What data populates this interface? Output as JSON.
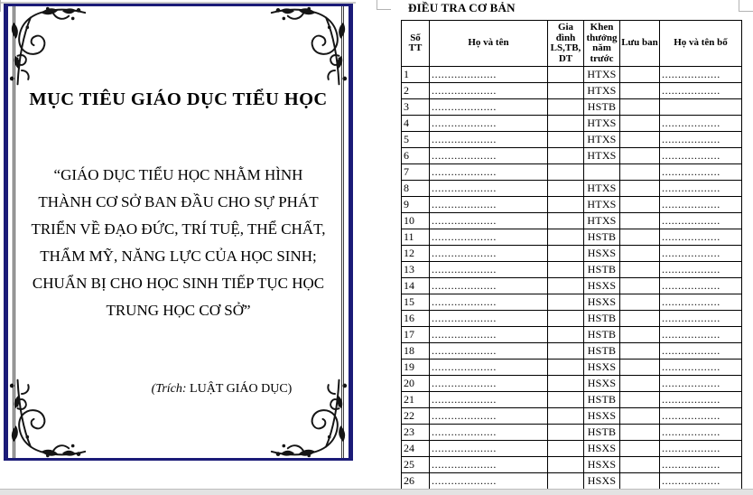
{
  "cover_page": {
    "title": "MỤC TIÊU GIÁO DỤC TIỂU HỌC",
    "quote_lines": [
      "“GIÁO DỤC TIỂU HỌC NHẰM HÌNH",
      "THÀNH CƠ SỞ BAN ĐẦU CHO SỰ PHÁT",
      "TRIỂN VỀ ĐẠO ĐỨC, TRÍ TUỆ, THỂ CHẤT,",
      "THẨM MỸ, NĂNG LỰC CỦA HỌC SINH;",
      "CHUẨN BỊ CHO HỌC SINH TIẾP TỤC HỌC",
      "TRUNG HỌC CƠ SỞ”"
    ],
    "attribution_italic": "(Trích:",
    "attribution_text": " LUẬT GIÁO DỤC)",
    "border_color": "#1b1b78"
  },
  "survey_page": {
    "title": "ĐIỀU TRA CƠ BẢN",
    "table": {
      "columns": [
        "Số TT",
        "Họ và tên",
        "Gia đình LS,TB, DT",
        "Khen thưởng năm trước",
        "Lưu ban",
        "Họ và tên bố"
      ],
      "rows": [
        {
          "stt": "1",
          "ho_va_ten": "....................",
          "gia_dinh": "",
          "khen_thuong": "HTXS",
          "luu_ban": "",
          "ho_va_ten_bo": ".................."
        },
        {
          "stt": "2",
          "ho_va_ten": "....................",
          "gia_dinh": "",
          "khen_thuong": "HTXS",
          "luu_ban": "",
          "ho_va_ten_bo": ".................."
        },
        {
          "stt": "3",
          "ho_va_ten": "....................",
          "gia_dinh": "",
          "khen_thuong": "HSTB",
          "luu_ban": "",
          "ho_va_ten_bo": ""
        },
        {
          "stt": "4",
          "ho_va_ten": "....................",
          "gia_dinh": "",
          "khen_thuong": "HTXS",
          "luu_ban": "",
          "ho_va_ten_bo": ".................."
        },
        {
          "stt": "5",
          "ho_va_ten": "....................",
          "gia_dinh": "",
          "khen_thuong": "HTXS",
          "luu_ban": "",
          "ho_va_ten_bo": ".................."
        },
        {
          "stt": "6",
          "ho_va_ten": "....................",
          "gia_dinh": "",
          "khen_thuong": "HTXS",
          "luu_ban": "",
          "ho_va_ten_bo": ".................."
        },
        {
          "stt": "7",
          "ho_va_ten": "....................",
          "gia_dinh": "",
          "khen_thuong": "",
          "luu_ban": "",
          "ho_va_ten_bo": ".................."
        },
        {
          "stt": "8",
          "ho_va_ten": "....................",
          "gia_dinh": "",
          "khen_thuong": "HTXS",
          "luu_ban": "",
          "ho_va_ten_bo": ".................."
        },
        {
          "stt": "9",
          "ho_va_ten": "....................",
          "gia_dinh": "",
          "khen_thuong": "HTXS",
          "luu_ban": "",
          "ho_va_ten_bo": ".................."
        },
        {
          "stt": "10",
          "ho_va_ten": "....................",
          "gia_dinh": "",
          "khen_thuong": "HTXS",
          "luu_ban": "",
          "ho_va_ten_bo": ".................."
        },
        {
          "stt": "11",
          "ho_va_ten": "....................",
          "gia_dinh": "",
          "khen_thuong": "HSTB",
          "luu_ban": "",
          "ho_va_ten_bo": ".................."
        },
        {
          "stt": "12",
          "ho_va_ten": "....................",
          "gia_dinh": "",
          "khen_thuong": "HSXS",
          "luu_ban": "",
          "ho_va_ten_bo": ".................."
        },
        {
          "stt": "13",
          "ho_va_ten": "....................",
          "gia_dinh": "",
          "khen_thuong": "HSTB",
          "luu_ban": "",
          "ho_va_ten_bo": ".................."
        },
        {
          "stt": "14",
          "ho_va_ten": "....................",
          "gia_dinh": "",
          "khen_thuong": "HSXS",
          "luu_ban": "",
          "ho_va_ten_bo": ".................."
        },
        {
          "stt": "15",
          "ho_va_ten": "....................",
          "gia_dinh": "",
          "khen_thuong": "HSXS",
          "luu_ban": "",
          "ho_va_ten_bo": ".................."
        },
        {
          "stt": "16",
          "ho_va_ten": "....................",
          "gia_dinh": "",
          "khen_thuong": "HSTB",
          "luu_ban": "",
          "ho_va_ten_bo": ".................."
        },
        {
          "stt": "17",
          "ho_va_ten": "....................",
          "gia_dinh": "",
          "khen_thuong": "HSTB",
          "luu_ban": "",
          "ho_va_ten_bo": ".................."
        },
        {
          "stt": "18",
          "ho_va_ten": "....................",
          "gia_dinh": "",
          "khen_thuong": "HSTB",
          "luu_ban": "",
          "ho_va_ten_bo": ".................."
        },
        {
          "stt": "19",
          "ho_va_ten": "....................",
          "gia_dinh": "",
          "khen_thuong": "HSXS",
          "luu_ban": "",
          "ho_va_ten_bo": ".................."
        },
        {
          "stt": "20",
          "ho_va_ten": "....................",
          "gia_dinh": "",
          "khen_thuong": "HSXS",
          "luu_ban": "",
          "ho_va_ten_bo": ".................."
        },
        {
          "stt": "21",
          "ho_va_ten": "....................",
          "gia_dinh": "",
          "khen_thuong": "HSTB",
          "luu_ban": "",
          "ho_va_ten_bo": ".................."
        },
        {
          "stt": "22",
          "ho_va_ten": "....................",
          "gia_dinh": "",
          "khen_thuong": "HSXS",
          "luu_ban": "",
          "ho_va_ten_bo": ".................."
        },
        {
          "stt": "23",
          "ho_va_ten": "....................",
          "gia_dinh": "",
          "khen_thuong": "HSTB",
          "luu_ban": "",
          "ho_va_ten_bo": ".................."
        },
        {
          "stt": "24",
          "ho_va_ten": "....................",
          "gia_dinh": "",
          "khen_thuong": "HSXS",
          "luu_ban": "",
          "ho_va_ten_bo": ".................."
        },
        {
          "stt": "25",
          "ho_va_ten": "....................",
          "gia_dinh": "",
          "khen_thuong": "HSXS",
          "luu_ban": "",
          "ho_va_ten_bo": ".................."
        },
        {
          "stt": "26",
          "ho_va_ten": "....................",
          "gia_dinh": "",
          "khen_thuong": "HSXS",
          "luu_ban": "",
          "ho_va_ten_bo": ".................."
        }
      ]
    }
  }
}
